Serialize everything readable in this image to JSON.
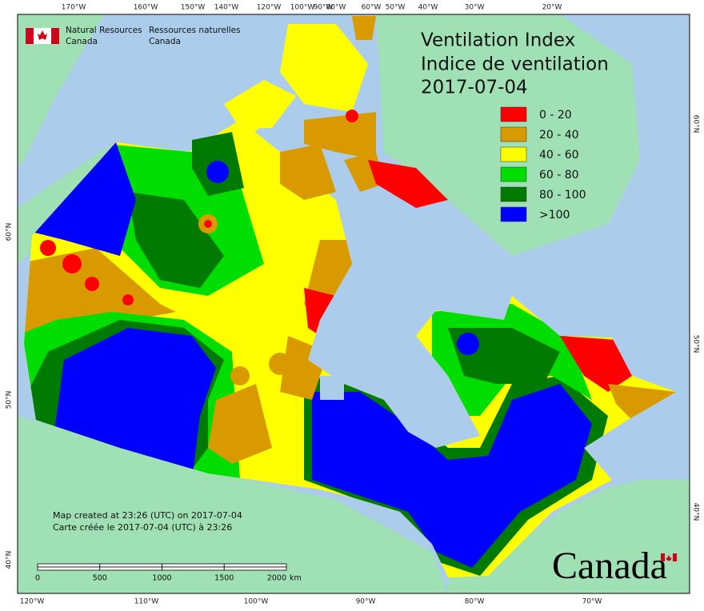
{
  "header": {
    "logo_en": [
      "Natural Resources",
      "Canada"
    ],
    "logo_fr": [
      "Ressources naturelles",
      "Canada"
    ]
  },
  "title": [
    "Ventilation Index",
    "Indice de ventilation",
    "2017-07-04"
  ],
  "legend": [
    {
      "label": "0 - 20",
      "color": "#ff0000"
    },
    {
      "label": "20 - 40",
      "color": "#d99a00"
    },
    {
      "label": "40 - 60",
      "color": "#ffff00"
    },
    {
      "label": "60 - 80",
      "color": "#00dd00"
    },
    {
      "label": "80 - 100",
      "color": "#007a00"
    },
    {
      "label": ">100",
      "color": "#0000ff"
    }
  ],
  "credits": [
    "Map created at 23:26 (UTC) on 2017-07-04",
    "Carte créée le 2017-07-04 (UTC) à 23:26"
  ],
  "scale_bar": {
    "labels": [
      "0",
      "500",
      "1000",
      "1500",
      "2000"
    ],
    "unit": "km"
  },
  "graticule": {
    "top": [
      "170°W",
      "160°W",
      "150°W",
      "140°W",
      "120°W",
      "100°W",
      "90°W",
      "80°W",
      "60°W",
      "50°W",
      "40°W",
      "30°W",
      "20°W"
    ],
    "bottom": [
      "120°W",
      "110°W",
      "100°W",
      "90°W",
      "80°W",
      "70°W"
    ],
    "left": [
      "60°N",
      "50°N",
      "40°N"
    ],
    "right": [
      "60°N",
      "50°N",
      "40°N"
    ]
  },
  "wordmark": "Canada"
}
